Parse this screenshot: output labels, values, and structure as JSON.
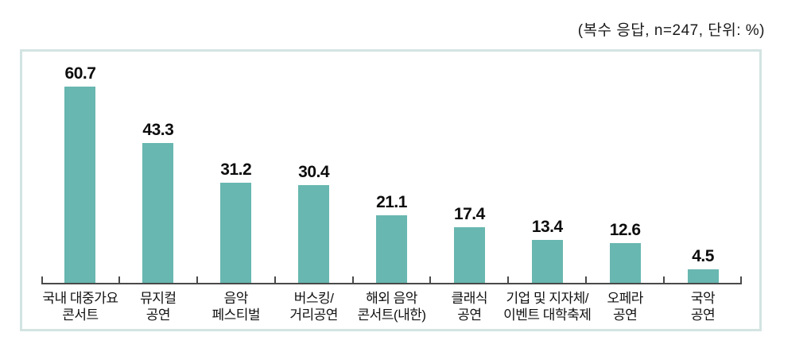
{
  "note": "(복수 응답, n=247, 단위: %)",
  "chart_data": {
    "type": "bar",
    "title": "",
    "xlabel": "",
    "ylabel": "",
    "unit": "%",
    "sample_note": "복수 응답",
    "n": 247,
    "categories": [
      "국내 대중가요\n콘서트",
      "뮤지컬\n공연",
      "음악\n페스티벌",
      "버스킹/\n거리공연",
      "해외 음악\n콘서트(내한)",
      "클래식\n공연",
      "기업 및 지자체/\n이벤트 대학축제",
      "오페라\n공연",
      "국악\n공연"
    ],
    "values": [
      60.7,
      43.3,
      31.2,
      30.4,
      21.1,
      17.4,
      13.4,
      12.6,
      4.5
    ],
    "ylim": [
      0,
      71.7
    ],
    "grid": false,
    "legend_position": "none",
    "value_labels": true,
    "bar_color": "#68b7b0",
    "frame_border_color": "#d3e4e2",
    "axis_color": "#4a4a4a"
  }
}
